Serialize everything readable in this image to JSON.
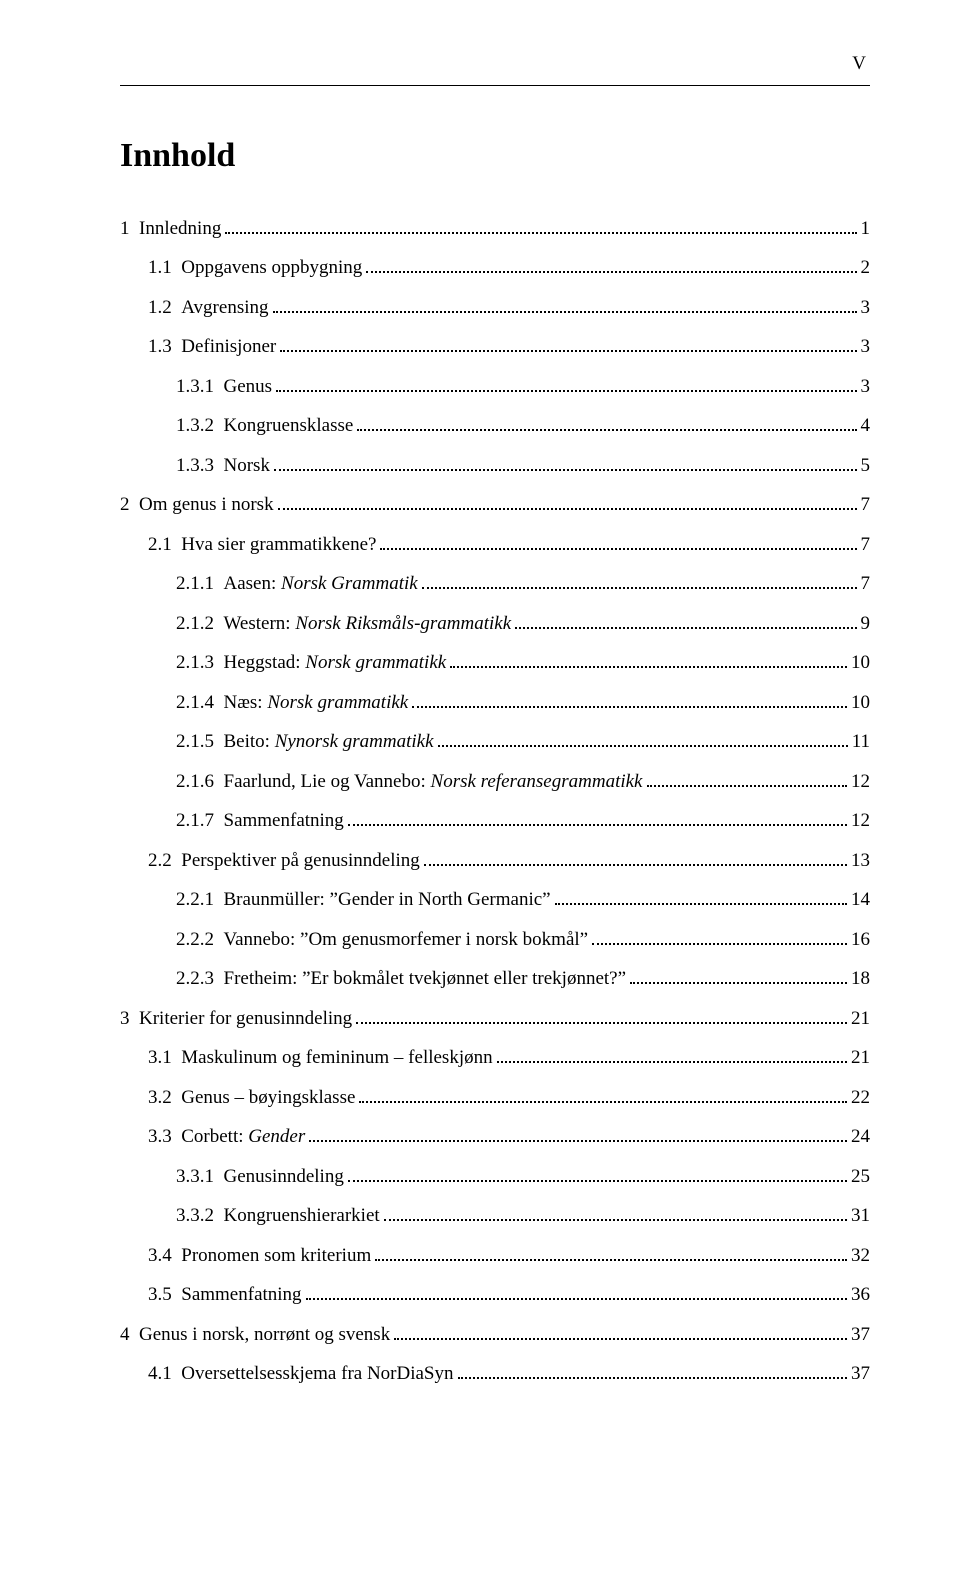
{
  "page_numeral": "V",
  "title": "Innhold",
  "entries": [
    {
      "level": 0,
      "num": "1",
      "text": "Innledning",
      "page": "1"
    },
    {
      "level": 1,
      "num": "1.1",
      "text": "Oppgavens oppbygning",
      "page": "2"
    },
    {
      "level": 1,
      "num": "1.2",
      "text": "Avgrensing",
      "page": "3"
    },
    {
      "level": 1,
      "num": "1.3",
      "text": "Definisjoner",
      "page": "3"
    },
    {
      "level": 2,
      "num": "1.3.1",
      "text": "Genus",
      "page": "3"
    },
    {
      "level": 2,
      "num": "1.3.2",
      "text": "Kongruensklasse",
      "page": "4"
    },
    {
      "level": 2,
      "num": "1.3.3",
      "text": "Norsk",
      "page": "5"
    },
    {
      "level": 0,
      "num": "2",
      "text": "Om genus i norsk",
      "page": "7"
    },
    {
      "level": 1,
      "num": "2.1",
      "text": "Hva sier grammatikkene?",
      "page": "7"
    },
    {
      "level": 2,
      "num": "2.1.1",
      "text_pre": "Aasen: ",
      "text_italic": "Norsk Grammatik",
      "page": "7"
    },
    {
      "level": 2,
      "num": "2.1.2",
      "text_pre": "Western: ",
      "text_italic": "Norsk Riksmåls-grammatikk",
      "page": "9"
    },
    {
      "level": 2,
      "num": "2.1.3",
      "text_pre": "Heggstad: ",
      "text_italic": "Norsk grammatikk",
      "page": "10"
    },
    {
      "level": 2,
      "num": "2.1.4",
      "text_pre": "Næs: ",
      "text_italic": "Norsk grammatikk",
      "page": "10"
    },
    {
      "level": 2,
      "num": "2.1.5",
      "text_pre": "Beito: ",
      "text_italic": "Nynorsk grammatikk",
      "page": "11"
    },
    {
      "level": 2,
      "num": "2.1.6",
      "text_pre": "Faarlund, Lie og Vannebo: ",
      "text_italic": "Norsk referansegrammatikk",
      "page": "12"
    },
    {
      "level": 2,
      "num": "2.1.7",
      "text": "Sammenfatning",
      "page": "12"
    },
    {
      "level": 1,
      "num": "2.2",
      "text": "Perspektiver på genusinndeling",
      "page": "13"
    },
    {
      "level": 2,
      "num": "2.2.1",
      "text": "Braunmüller: ”Gender in North Germanic”",
      "page": "14"
    },
    {
      "level": 2,
      "num": "2.2.2",
      "text": "Vannebo: ”Om genusmorfemer i norsk bokmål”",
      "page": "16"
    },
    {
      "level": 2,
      "num": "2.2.3",
      "text": "Fretheim: ”Er bokmålet tvekjønnet eller trekjønnet?”",
      "page": "18"
    },
    {
      "level": 0,
      "num": "3",
      "text": "Kriterier for genusinndeling",
      "page": "21"
    },
    {
      "level": 1,
      "num": "3.1",
      "text": "Maskulinum og femininum – felleskjønn",
      "page": "21"
    },
    {
      "level": 1,
      "num": "3.2",
      "text": "Genus – bøyingsklasse",
      "page": "22"
    },
    {
      "level": 1,
      "num": "3.3",
      "text_pre": "Corbett: ",
      "text_italic": "Gender",
      "page": "24"
    },
    {
      "level": 2,
      "num": "3.3.1",
      "text": "Genusinndeling",
      "page": "25"
    },
    {
      "level": 2,
      "num": "3.3.2",
      "text": "Kongruenshierarkiet",
      "page": "31"
    },
    {
      "level": 1,
      "num": "3.4",
      "text": "Pronomen som kriterium",
      "page": "32"
    },
    {
      "level": 1,
      "num": "3.5",
      "text": "Sammenfatning",
      "page": "36"
    },
    {
      "level": 0,
      "num": "4",
      "text": "Genus i norsk, norrønt og svensk",
      "page": "37"
    },
    {
      "level": 1,
      "num": "4.1",
      "text": "Oversettelsesskjema fra NorDiaSyn",
      "page": "37"
    }
  ]
}
